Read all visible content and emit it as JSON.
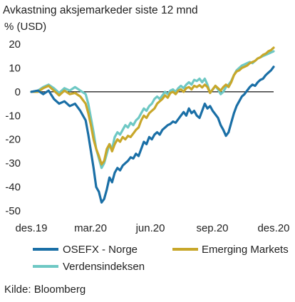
{
  "chart_data": {
    "type": "line",
    "title": "Avkastning aksjemarkeder siste 12 mnd",
    "subtitle": "% (USD)",
    "source": "Kilde: Bloomberg",
    "xlabel": "",
    "ylabel": "",
    "ylim": [
      -50,
      20
    ],
    "yticks": [
      20,
      10,
      0,
      -10,
      -20,
      -30,
      -40,
      -50
    ],
    "xticks": [
      "des.19",
      "mar.20",
      "jun.20",
      "sep.20",
      "des.20"
    ],
    "grid": false,
    "legend": "bottom",
    "zero_line": true,
    "series": [
      {
        "name": "OSEFX - Norge",
        "color": "#1a6fa6",
        "points": [
          [
            0,
            0
          ],
          [
            5,
            0.5
          ],
          [
            9,
            -1
          ],
          [
            13,
            0.5
          ],
          [
            17,
            -3
          ],
          [
            21,
            -5
          ],
          [
            25,
            -4
          ],
          [
            29,
            -6
          ],
          [
            33,
            -5
          ],
          [
            37,
            -8
          ],
          [
            41,
            -12
          ],
          [
            43,
            -18
          ],
          [
            45,
            -25
          ],
          [
            47,
            -32
          ],
          [
            49,
            -40
          ],
          [
            51,
            -42
          ],
          [
            53,
            -46.5
          ],
          [
            55,
            -45
          ],
          [
            57,
            -41
          ],
          [
            59,
            -36
          ],
          [
            61,
            -38
          ],
          [
            63,
            -34
          ],
          [
            65,
            -32
          ],
          [
            67,
            -33
          ],
          [
            69,
            -31
          ],
          [
            71,
            -30
          ],
          [
            73,
            -29
          ],
          [
            75,
            -27.5
          ],
          [
            77,
            -28
          ],
          [
            79,
            -26
          ],
          [
            81,
            -27
          ],
          [
            83,
            -24
          ],
          [
            85,
            -21
          ],
          [
            87,
            -22
          ],
          [
            89,
            -19
          ],
          [
            91,
            -20
          ],
          [
            93,
            -18
          ],
          [
            95,
            -17
          ],
          [
            97,
            -18
          ],
          [
            99,
            -16
          ],
          [
            101,
            -15
          ],
          [
            103,
            -14
          ],
          [
            105,
            -13.5
          ],
          [
            107,
            -12.5
          ],
          [
            109,
            -13
          ],
          [
            111,
            -11.5
          ],
          [
            113,
            -10
          ],
          [
            115,
            -8.5
          ],
          [
            117,
            -10
          ],
          [
            119,
            -7
          ],
          [
            121,
            -9
          ],
          [
            123,
            -8
          ],
          [
            125,
            -10
          ],
          [
            127,
            -11
          ],
          [
            129,
            -8
          ],
          [
            131,
            -5
          ],
          [
            133,
            -7
          ],
          [
            135,
            -6
          ],
          [
            137,
            -8
          ],
          [
            139,
            -9.5
          ],
          [
            141,
            -11
          ],
          [
            143,
            -14
          ],
          [
            145,
            -16
          ],
          [
            147,
            -18.5
          ],
          [
            149,
            -17
          ],
          [
            151,
            -13
          ],
          [
            153,
            -9
          ],
          [
            155,
            -6
          ],
          [
            157,
            -4
          ],
          [
            159,
            -2
          ],
          [
            161,
            -1
          ],
          [
            163,
            0.5
          ],
          [
            165,
            2
          ],
          [
            167,
            3
          ],
          [
            169,
            2.5
          ],
          [
            171,
            4
          ],
          [
            173,
            5
          ],
          [
            175,
            5.5
          ],
          [
            177,
            7
          ],
          [
            179,
            8
          ],
          [
            181,
            9
          ],
          [
            183,
            10.5
          ]
        ]
      },
      {
        "name": "Emerging Markets",
        "color": "#c8a72a",
        "points": [
          [
            0,
            0
          ],
          [
            5,
            0
          ],
          [
            9,
            1.5
          ],
          [
            13,
            2.5
          ],
          [
            17,
            0.5
          ],
          [
            21,
            -1.5
          ],
          [
            25,
            0.5
          ],
          [
            29,
            -1
          ],
          [
            33,
            -0.5
          ],
          [
            37,
            -2
          ],
          [
            41,
            -5
          ],
          [
            43,
            -9
          ],
          [
            45,
            -14
          ],
          [
            47,
            -20
          ],
          [
            49,
            -24
          ],
          [
            51,
            -27
          ],
          [
            53,
            -30.5
          ],
          [
            55,
            -29
          ],
          [
            57,
            -24
          ],
          [
            59,
            -22
          ],
          [
            61,
            -25
          ],
          [
            63,
            -22
          ],
          [
            65,
            -20
          ],
          [
            67,
            -21
          ],
          [
            69,
            -19
          ],
          [
            71,
            -20
          ],
          [
            73,
            -18.5
          ],
          [
            75,
            -19
          ],
          [
            77,
            -17.5
          ],
          [
            79,
            -16
          ],
          [
            81,
            -15
          ],
          [
            83,
            -12
          ],
          [
            85,
            -10
          ],
          [
            87,
            -11
          ],
          [
            89,
            -9
          ],
          [
            91,
            -8
          ],
          [
            93,
            -7
          ],
          [
            95,
            -5
          ],
          [
            97,
            -4
          ],
          [
            99,
            -3
          ],
          [
            101,
            -1.5
          ],
          [
            103,
            -2.5
          ],
          [
            105,
            -0.5
          ],
          [
            107,
            0
          ],
          [
            109,
            -1
          ],
          [
            111,
            0.5
          ],
          [
            113,
            1
          ],
          [
            115,
            0
          ],
          [
            117,
            1.5
          ],
          [
            119,
            2
          ],
          [
            121,
            1
          ],
          [
            123,
            2.5
          ],
          [
            125,
            2
          ],
          [
            127,
            2.8
          ],
          [
            129,
            1.8
          ],
          [
            131,
            3
          ],
          [
            133,
            2
          ],
          [
            135,
            -0.5
          ],
          [
            137,
            1
          ],
          [
            139,
            2.5
          ],
          [
            141,
            1.5
          ],
          [
            143,
            0.5
          ],
          [
            145,
            2
          ],
          [
            147,
            3
          ],
          [
            149,
            2
          ],
          [
            151,
            4
          ],
          [
            153,
            7
          ],
          [
            155,
            8.5
          ],
          [
            157,
            9
          ],
          [
            159,
            10
          ],
          [
            161,
            10.5
          ],
          [
            163,
            11
          ],
          [
            165,
            12
          ],
          [
            167,
            12.5
          ],
          [
            169,
            13
          ],
          [
            171,
            14
          ],
          [
            173,
            14.5
          ],
          [
            175,
            15.5
          ],
          [
            177,
            16
          ],
          [
            179,
            17
          ],
          [
            181,
            17.5
          ],
          [
            183,
            18.5
          ]
        ]
      },
      {
        "name": "Verdensindeksen",
        "color": "#6ec8c4",
        "points": [
          [
            0,
            0
          ],
          [
            5,
            0.5
          ],
          [
            9,
            2
          ],
          [
            13,
            3
          ],
          [
            17,
            1.5
          ],
          [
            21,
            -0.5
          ],
          [
            25,
            1.5
          ],
          [
            29,
            0.5
          ],
          [
            33,
            2
          ],
          [
            37,
            0.5
          ],
          [
            41,
            -1
          ],
          [
            43,
            -5
          ],
          [
            45,
            -11
          ],
          [
            47,
            -17
          ],
          [
            49,
            -24
          ],
          [
            51,
            -28
          ],
          [
            53,
            -32
          ],
          [
            55,
            -30
          ],
          [
            57,
            -26
          ],
          [
            59,
            -22
          ],
          [
            61,
            -24
          ],
          [
            63,
            -19
          ],
          [
            65,
            -17
          ],
          [
            67,
            -18
          ],
          [
            69,
            -16
          ],
          [
            71,
            -14
          ],
          [
            73,
            -15
          ],
          [
            75,
            -13
          ],
          [
            77,
            -14
          ],
          [
            79,
            -12
          ],
          [
            81,
            -11
          ],
          [
            83,
            -9
          ],
          [
            85,
            -7
          ],
          [
            87,
            -8
          ],
          [
            89,
            -6
          ],
          [
            91,
            -5
          ],
          [
            93,
            -3
          ],
          [
            95,
            -2
          ],
          [
            97,
            -3
          ],
          [
            99,
            -1.5
          ],
          [
            101,
            0
          ],
          [
            103,
            -1
          ],
          [
            105,
            0.5
          ],
          [
            107,
            1
          ],
          [
            109,
            0
          ],
          [
            111,
            1.5
          ],
          [
            113,
            2.5
          ],
          [
            115,
            1.5
          ],
          [
            117,
            3
          ],
          [
            119,
            4
          ],
          [
            121,
            3
          ],
          [
            123,
            5
          ],
          [
            125,
            4.5
          ],
          [
            127,
            5.5
          ],
          [
            129,
            4
          ],
          [
            131,
            5.5
          ],
          [
            133,
            3
          ],
          [
            135,
            -0.5
          ],
          [
            137,
            1
          ],
          [
            139,
            2.5
          ],
          [
            141,
            1
          ],
          [
            143,
            -1
          ],
          [
            145,
            0
          ],
          [
            147,
            2
          ],
          [
            149,
            3
          ],
          [
            151,
            4.5
          ],
          [
            153,
            7
          ],
          [
            155,
            9
          ],
          [
            157,
            10
          ],
          [
            159,
            11
          ],
          [
            161,
            11.5
          ],
          [
            163,
            12
          ],
          [
            165,
            12.5
          ],
          [
            167,
            12
          ],
          [
            169,
            13
          ],
          [
            171,
            14
          ],
          [
            173,
            14.5
          ],
          [
            175,
            15
          ],
          [
            177,
            15.5
          ],
          [
            179,
            16
          ],
          [
            181,
            16.5
          ],
          [
            183,
            17
          ]
        ]
      }
    ]
  }
}
